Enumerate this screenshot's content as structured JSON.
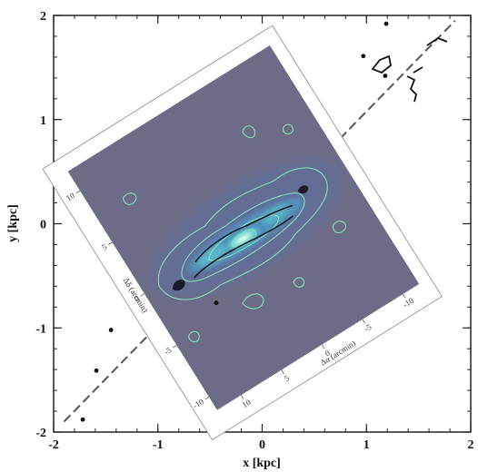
{
  "chart_data": {
    "type": "scatter",
    "title": "",
    "xlabel": "x [kpc]",
    "ylabel": "y [kpc]",
    "xlim": [
      -2,
      2
    ],
    "ylim": [
      -2,
      2
    ],
    "x_ticks": [
      "-2",
      "-1",
      "0",
      "1",
      "2"
    ],
    "y_ticks": [
      "-2",
      "-1",
      "0",
      "1",
      "2"
    ],
    "grid": false,
    "major_axis_line": {
      "from": [
        -1.9,
        -1.9
      ],
      "to": [
        1.85,
        1.95
      ]
    },
    "point_markers": [
      {
        "x": -1.72,
        "y": -1.88
      },
      {
        "x": -1.59,
        "y": -1.41
      },
      {
        "x": -1.45,
        "y": -1.02
      },
      {
        "x": -0.44,
        "y": -0.76
      },
      {
        "x": 0.97,
        "y": 1.61
      },
      {
        "x": 1.18,
        "y": 1.42
      },
      {
        "x": 1.19,
        "y": 1.92
      }
    ],
    "inset_map": {
      "xlabel": "Δα (arcmin)",
      "ylabel": "Δδ (arcmin)",
      "alpha_ticks": [
        "10",
        "5",
        "0",
        "-5",
        "-10"
      ],
      "delta_ticks": [
        "-10",
        "-5",
        "0",
        "5",
        "10"
      ],
      "colors": {
        "background": "#6d6c86",
        "emission_mid": "#4f6ea6",
        "emission_bright": "#5ab8c8",
        "core": "#f2fffb",
        "contour": "#86e8c0"
      }
    }
  }
}
